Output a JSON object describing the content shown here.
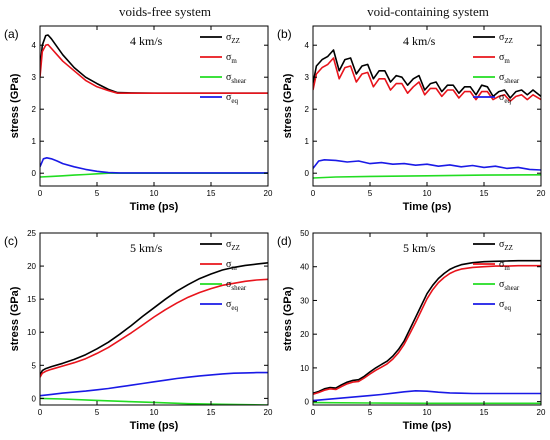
{
  "column_titles": [
    "voids-free system",
    "void-containing system"
  ],
  "colors": {
    "sigma_zz": "#000000",
    "sigma_m": "#e8141c",
    "sigma_shear": "#22dd22",
    "sigma_eq": "#1a1ae6"
  },
  "chart_data": [
    {
      "type": "line",
      "panel_label": "(a)",
      "speed_label": "4 km/s",
      "xlabel": "Time (ps)",
      "ylabel": "stress (GPa)",
      "xlim": [
        0,
        20
      ],
      "ylim": [
        -0.4,
        4.6
      ],
      "xticks": [
        "0",
        "5",
        "10",
        "15",
        "20"
      ],
      "yticks": [
        "0",
        "1",
        "2",
        "3",
        "4"
      ],
      "series": [
        {
          "name": "σZZ",
          "legend_main": "σ",
          "legend_sub": "ZZ",
          "color": "#000000",
          "x": [
            0,
            0.2,
            0.5,
            0.7,
            1,
            1.5,
            2,
            3,
            4,
            5,
            6,
            6.8,
            8,
            10,
            12,
            15,
            18,
            20
          ],
          "y": [
            3.2,
            4.0,
            4.3,
            4.32,
            4.2,
            3.95,
            3.7,
            3.3,
            3.0,
            2.8,
            2.62,
            2.52,
            2.51,
            2.5,
            2.5,
            2.5,
            2.5,
            2.5
          ]
        },
        {
          "name": "σm",
          "legend_main": "σ",
          "legend_sub": "m",
          "color": "#e8141c",
          "x": [
            0,
            0.2,
            0.5,
            0.7,
            1,
            1.5,
            2,
            3,
            4,
            5,
            6,
            6.8,
            8,
            10,
            12,
            15,
            18,
            20
          ],
          "y": [
            3.0,
            3.8,
            4.0,
            4.02,
            3.9,
            3.7,
            3.5,
            3.2,
            2.9,
            2.7,
            2.58,
            2.5,
            2.5,
            2.5,
            2.5,
            2.5,
            2.5,
            2.5
          ]
        },
        {
          "name": "σshear",
          "legend_main": "σ",
          "legend_sub": "shear",
          "color": "#22dd22",
          "x": [
            0,
            1,
            2,
            3,
            4,
            5,
            6,
            8,
            10,
            15,
            20
          ],
          "y": [
            -0.12,
            -0.1,
            -0.08,
            -0.06,
            -0.04,
            -0.02,
            0,
            0,
            0,
            0,
            0
          ]
        },
        {
          "name": "σeq",
          "legend_main": "σ",
          "legend_sub": "eq",
          "color": "#1a1ae6",
          "x": [
            0,
            0.3,
            0.6,
            1,
            1.5,
            2,
            3,
            4,
            5,
            6,
            7,
            10,
            15,
            20
          ],
          "y": [
            0.2,
            0.45,
            0.48,
            0.45,
            0.38,
            0.3,
            0.2,
            0.12,
            0.06,
            0.02,
            0.01,
            0.01,
            0.01,
            0.01
          ]
        }
      ]
    },
    {
      "type": "line",
      "panel_label": "(b)",
      "speed_label": "4 km/s",
      "xlabel": "Time (ps)",
      "ylabel": "stress (GPa)",
      "xlim": [
        0,
        20
      ],
      "ylim": [
        -0.4,
        4.6
      ],
      "xticks": [
        "0",
        "5",
        "10",
        "15",
        "20"
      ],
      "yticks": [
        "0",
        "1",
        "2",
        "3",
        "4"
      ],
      "series": [
        {
          "name": "σZZ",
          "legend_main": "σ",
          "legend_sub": "ZZ",
          "color": "#000000",
          "x": [
            0,
            0.3,
            0.8,
            1.3,
            1.8,
            2.3,
            2.8,
            3.3,
            3.8,
            4.3,
            4.8,
            5.3,
            5.8,
            6.3,
            6.8,
            7.3,
            7.8,
            8.3,
            8.8,
            9.3,
            9.8,
            10.3,
            10.8,
            11.3,
            11.8,
            12.3,
            12.8,
            13.3,
            13.8,
            14.3,
            14.8,
            15.3,
            15.8,
            16.3,
            16.8,
            17.3,
            17.8,
            18.3,
            18.8,
            19.3,
            20
          ],
          "y": [
            2.8,
            3.35,
            3.55,
            3.65,
            3.85,
            3.2,
            3.55,
            3.6,
            3.1,
            3.35,
            3.4,
            2.95,
            3.2,
            3.2,
            2.85,
            3.05,
            3.0,
            2.75,
            2.95,
            3.05,
            2.6,
            2.8,
            2.85,
            2.55,
            2.75,
            2.75,
            2.5,
            2.7,
            2.7,
            2.45,
            2.75,
            2.7,
            2.4,
            2.55,
            2.6,
            2.35,
            2.55,
            2.6,
            2.45,
            2.6,
            2.4
          ]
        },
        {
          "name": "σm",
          "legend_main": "σ",
          "legend_sub": "m",
          "color": "#e8141c",
          "x": [
            0,
            0.3,
            0.8,
            1.3,
            1.8,
            2.3,
            2.8,
            3.3,
            3.8,
            4.3,
            4.8,
            5.3,
            5.8,
            6.3,
            6.8,
            7.3,
            7.8,
            8.3,
            8.8,
            9.3,
            9.8,
            10.3,
            10.8,
            11.3,
            11.8,
            12.3,
            12.8,
            13.3,
            13.8,
            14.3,
            14.8,
            15.3,
            15.8,
            16.3,
            16.8,
            17.3,
            17.8,
            18.3,
            18.8,
            19.3,
            20
          ],
          "y": [
            2.6,
            3.1,
            3.3,
            3.4,
            3.6,
            2.95,
            3.3,
            3.35,
            2.85,
            3.1,
            3.15,
            2.7,
            2.95,
            2.95,
            2.6,
            2.8,
            2.8,
            2.5,
            2.7,
            2.85,
            2.45,
            2.65,
            2.65,
            2.4,
            2.6,
            2.6,
            2.35,
            2.55,
            2.55,
            2.3,
            2.55,
            2.55,
            2.3,
            2.4,
            2.45,
            2.25,
            2.4,
            2.45,
            2.3,
            2.45,
            2.3
          ]
        },
        {
          "name": "σshear",
          "legend_main": "σ",
          "legend_sub": "shear",
          "color": "#22dd22",
          "x": [
            0,
            2,
            5,
            10,
            15,
            20
          ],
          "y": [
            -0.15,
            -0.12,
            -0.1,
            -0.08,
            -0.06,
            -0.05
          ]
        },
        {
          "name": "σeq",
          "legend_main": "σ",
          "legend_sub": "eq",
          "color": "#1a1ae6",
          "x": [
            0,
            0.5,
            1,
            2,
            3,
            4,
            5,
            6,
            7,
            8,
            9,
            10,
            11,
            12,
            13,
            14,
            15,
            16,
            17,
            18,
            19,
            20
          ],
          "y": [
            0.15,
            0.38,
            0.42,
            0.4,
            0.35,
            0.38,
            0.3,
            0.33,
            0.28,
            0.3,
            0.25,
            0.28,
            0.22,
            0.26,
            0.2,
            0.24,
            0.18,
            0.22,
            0.15,
            0.18,
            0.12,
            0.1
          ]
        }
      ]
    },
    {
      "type": "line",
      "panel_label": "(c)",
      "speed_label": "5 km/s",
      "xlabel": "Time (ps)",
      "ylabel": "stress (GPa)",
      "xlim": [
        0,
        20
      ],
      "ylim": [
        -1,
        25
      ],
      "xticks": [
        "0",
        "5",
        "10",
        "15",
        "20"
      ],
      "yticks": [
        "0",
        "5",
        "10",
        "15",
        "20",
        "25"
      ],
      "series": [
        {
          "name": "σZZ",
          "legend_main": "σ",
          "legend_sub": "ZZ",
          "color": "#000000",
          "x": [
            0,
            0.2,
            0.5,
            1,
            2,
            3,
            4,
            5,
            6,
            7,
            8,
            9,
            10,
            11,
            12,
            13,
            14,
            15,
            16,
            17,
            18,
            19,
            20
          ],
          "y": [
            3.5,
            4.2,
            4.5,
            4.8,
            5.3,
            5.9,
            6.6,
            7.5,
            8.5,
            9.7,
            11.0,
            12.4,
            13.7,
            15.0,
            16.2,
            17.2,
            18.1,
            18.8,
            19.4,
            19.8,
            20.1,
            20.3,
            20.5
          ]
        },
        {
          "name": "σm",
          "legend_main": "σ",
          "legend_sub": "m",
          "color": "#e8141c",
          "x": [
            0,
            0.2,
            0.5,
            1,
            2,
            3,
            4,
            5,
            6,
            7,
            8,
            9,
            10,
            11,
            12,
            13,
            14,
            15,
            16,
            17,
            18,
            19,
            20
          ],
          "y": [
            3.2,
            3.8,
            4.1,
            4.4,
            4.9,
            5.4,
            6.0,
            6.8,
            7.7,
            8.8,
            9.9,
            11.1,
            12.3,
            13.4,
            14.4,
            15.3,
            16.0,
            16.6,
            17.1,
            17.4,
            17.7,
            17.9,
            18.0
          ]
        },
        {
          "name": "σshear",
          "legend_main": "σ",
          "legend_sub": "shear",
          "color": "#22dd22",
          "x": [
            0,
            2,
            5,
            8,
            10,
            13,
            16,
            20
          ],
          "y": [
            0,
            -0.1,
            -0.3,
            -0.5,
            -0.6,
            -0.8,
            -0.9,
            -1.0
          ]
        },
        {
          "name": "σeq",
          "legend_main": "σ",
          "legend_sub": "eq",
          "color": "#1a1ae6",
          "x": [
            0,
            1,
            2,
            3,
            4,
            5,
            6,
            7,
            8,
            9,
            10,
            11,
            12,
            13,
            14,
            15,
            16,
            17,
            18,
            19,
            20
          ],
          "y": [
            0.4,
            0.6,
            0.8,
            0.95,
            1.1,
            1.3,
            1.5,
            1.75,
            2.0,
            2.25,
            2.5,
            2.75,
            3.0,
            3.2,
            3.4,
            3.55,
            3.7,
            3.8,
            3.85,
            3.9,
            3.9
          ]
        }
      ]
    },
    {
      "type": "line",
      "panel_label": "(d)",
      "speed_label": "5 km/s",
      "xlabel": "Time (ps)",
      "ylabel": "stress (GPa)",
      "xlim": [
        0,
        20
      ],
      "ylim": [
        -1,
        50
      ],
      "xticks": [
        "0",
        "5",
        "10",
        "15",
        "20"
      ],
      "yticks": [
        "0",
        "10",
        "20",
        "30",
        "40",
        "50"
      ],
      "series": [
        {
          "name": "σZZ",
          "legend_main": "σ",
          "legend_sub": "ZZ",
          "color": "#000000",
          "x": [
            0,
            0.5,
            1,
            1.5,
            2,
            2.5,
            3,
            3.5,
            4,
            4.5,
            5,
            5.5,
            6,
            6.5,
            7,
            7.5,
            8,
            8.5,
            9,
            9.5,
            10,
            10.5,
            11,
            11.5,
            12,
            12.5,
            13,
            14,
            15,
            16,
            17,
            18,
            19,
            20
          ],
          "y": [
            2.5,
            3.0,
            3.8,
            4.2,
            4.0,
            5.0,
            5.8,
            6.3,
            6.5,
            7.5,
            8.8,
            10.0,
            11.0,
            12.0,
            13.5,
            15.5,
            18.0,
            21.5,
            25.0,
            28.5,
            32.0,
            34.5,
            36.5,
            38.0,
            39.2,
            40.0,
            40.6,
            41.2,
            41.5,
            41.6,
            41.7,
            41.8,
            41.8,
            41.8
          ]
        },
        {
          "name": "σm",
          "legend_main": "σ",
          "legend_sub": "m",
          "color": "#e8141c",
          "x": [
            0,
            0.5,
            1,
            1.5,
            2,
            2.5,
            3,
            3.5,
            4,
            4.5,
            5,
            5.5,
            6,
            6.5,
            7,
            7.5,
            8,
            8.5,
            9,
            9.5,
            10,
            10.5,
            11,
            11.5,
            12,
            12.5,
            13,
            14,
            15,
            16,
            17,
            18,
            19,
            20
          ],
          "y": [
            2.2,
            2.7,
            3.4,
            3.8,
            3.6,
            4.5,
            5.3,
            5.8,
            6.0,
            7.0,
            8.2,
            9.3,
            10.2,
            11.2,
            12.6,
            14.5,
            17.0,
            20.2,
            23.5,
            27.0,
            30.5,
            33.2,
            35.3,
            36.8,
            38.0,
            38.8,
            39.3,
            39.8,
            40.0,
            40.2,
            40.2,
            40.3,
            40.3,
            40.3
          ]
        },
        {
          "name": "σshear",
          "legend_main": "σ",
          "legend_sub": "shear",
          "color": "#22dd22",
          "x": [
            0,
            5,
            10,
            15,
            20
          ],
          "y": [
            -0.3,
            -0.4,
            -0.5,
            -0.5,
            -0.5
          ]
        },
        {
          "name": "σeq",
          "legend_main": "σ",
          "legend_sub": "eq",
          "color": "#1a1ae6",
          "x": [
            0,
            1,
            2,
            3,
            4,
            5,
            6,
            7,
            8,
            9,
            10,
            11,
            12,
            13,
            14,
            15,
            16,
            17,
            18,
            19,
            20
          ],
          "y": [
            0.3,
            0.6,
            0.9,
            1.2,
            1.5,
            1.8,
            2.1,
            2.5,
            2.9,
            3.2,
            3.1,
            2.8,
            2.6,
            2.5,
            2.4,
            2.4,
            2.4,
            2.4,
            2.4,
            2.4,
            2.4
          ]
        }
      ]
    }
  ]
}
